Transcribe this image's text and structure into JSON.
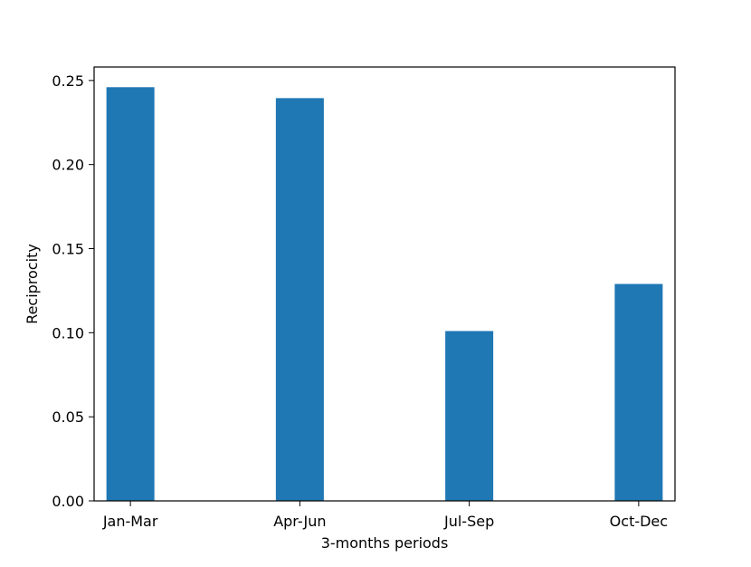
{
  "chart_data": {
    "type": "bar",
    "categories": [
      "Jan-Mar",
      "Apr-Jun",
      "Jul-Sep",
      "Oct-Dec"
    ],
    "values": [
      0.246,
      0.2395,
      0.101,
      0.129
    ],
    "title": "",
    "xlabel": "3-months periods",
    "ylabel": "Reciprocity",
    "ylim": [
      0,
      0.258
    ],
    "yticks": [
      0.0,
      0.05,
      0.1,
      0.15,
      0.2,
      0.25
    ],
    "ytick_labels": [
      "0.00",
      "0.05",
      "0.10",
      "0.15",
      "0.20",
      "0.25"
    ],
    "grid": false,
    "legend": "none",
    "bar_color": "#1f77b4"
  }
}
